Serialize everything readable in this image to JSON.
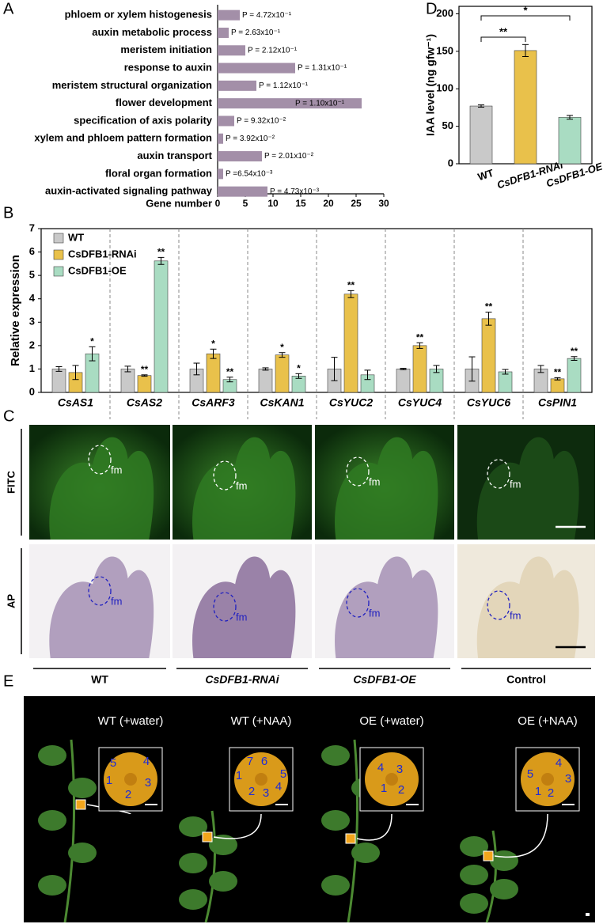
{
  "panel_labels": [
    "A",
    "B",
    "C",
    "D",
    "E"
  ],
  "chart_data": [
    {
      "type": "horizontal_bar",
      "categories": [
        "phloem or xylem histogenesis",
        "auxin metabolic process",
        "meristem initiation",
        "response to auxin",
        "meristem structural organization",
        "flower development",
        "specification of axis polarity",
        "xylem and phloem pattern formation",
        "auxin transport",
        "floral organ formation",
        "auxin-activated signaling pathway"
      ],
      "values": [
        4,
        2,
        5,
        14,
        7,
        26,
        3,
        1,
        8,
        1,
        9
      ],
      "annotations": [
        "P = 4.72x10⁻¹",
        "P = 2.63x10⁻¹",
        "P = 2.12x10⁻¹",
        "P = 1.31x10⁻¹",
        "P = 1.12x10⁻¹",
        "P = 1.10x10⁻¹",
        "P = 9.32x10⁻²",
        "P = 3.92x10⁻²",
        "P = 2.01x10⁻²",
        "P =6.54x10⁻³",
        "P = 4.73x10⁻³"
      ],
      "color": "#a38fa8",
      "xlabel": "Gene number",
      "xlim": [
        0,
        30
      ],
      "xticks": [
        0,
        5,
        10,
        15,
        20,
        25,
        30
      ]
    },
    {
      "type": "grouped_bar",
      "categories": [
        "CsAS1",
        "CsAS2",
        "CsARF3",
        "CsKAN1",
        "CsYUC2",
        "CsYUC4",
        "CsYUC6",
        "CsPIN1"
      ],
      "series": [
        {
          "name": "WT",
          "color": "#c9c9c9",
          "values": [
            1.0,
            1.0,
            1.0,
            1.0,
            1.0,
            1.0,
            1.0,
            1.0
          ],
          "errors": [
            0.1,
            0.12,
            0.25,
            0.05,
            0.5,
            0.03,
            0.52,
            0.15
          ],
          "significance": [
            null,
            null,
            null,
            null,
            null,
            null,
            null,
            null
          ]
        },
        {
          "name": "CsDFB1-RNAi",
          "color": "#e9c14b",
          "values": [
            0.85,
            0.72,
            1.65,
            1.6,
            4.2,
            2.0,
            3.15,
            0.58
          ],
          "errors": [
            0.3,
            0.03,
            0.2,
            0.1,
            0.15,
            0.12,
            0.28,
            0.05
          ],
          "significance": [
            null,
            "**",
            "*",
            "*",
            "**",
            "**",
            "**",
            "**"
          ]
        },
        {
          "name": "CsDFB1-OE",
          "color": "#a9dcc2",
          "values": [
            1.65,
            5.62,
            0.55,
            0.7,
            0.75,
            1.0,
            0.88,
            1.45
          ],
          "errors": [
            0.3,
            0.15,
            0.1,
            0.1,
            0.2,
            0.15,
            0.1,
            0.08
          ],
          "significance": [
            "*",
            "**",
            "**",
            "*",
            null,
            null,
            null,
            "**"
          ]
        }
      ],
      "ylabel": "Relative expression",
      "ylim": [
        0,
        7
      ],
      "yticks": [
        0,
        1,
        2,
        3,
        4,
        5,
        6,
        7
      ],
      "legend": "upper left"
    },
    {
      "type": "bar",
      "categories": [
        "WT",
        "CsDFB1-RNAi",
        "CsDFB1-OE"
      ],
      "values": [
        77,
        151,
        62
      ],
      "errors": [
        1.5,
        8,
        2.5
      ],
      "colors": [
        "#c9c9c9",
        "#e9c14b",
        "#a9dcc2"
      ],
      "annotations": [
        "**",
        "*"
      ],
      "ylabel": "IAA level (ng gfw⁻¹)",
      "ylim": [
        0,
        210
      ],
      "yticks": [
        0,
        50,
        100,
        150,
        200
      ]
    }
  ],
  "panel_c": {
    "rows": [
      "FITC",
      "AP"
    ],
    "columns": [
      "WT",
      "CsDFB1-RNAi",
      "CsDFB1-OE",
      "Control"
    ],
    "region_label": "fm"
  },
  "panel_e": {
    "plants": [
      {
        "label": "WT (+water)",
        "petals": [
          5,
          4,
          1,
          3,
          2
        ]
      },
      {
        "label": "WT (+NAA)",
        "petals": [
          7,
          6,
          1,
          5,
          2,
          3,
          4
        ]
      },
      {
        "label": "OE (+water)",
        "petals": [
          4,
          3,
          1,
          2
        ]
      },
      {
        "label": "OE (+NAA)",
        "petals": [
          5,
          4,
          3,
          1,
          2
        ]
      }
    ]
  }
}
